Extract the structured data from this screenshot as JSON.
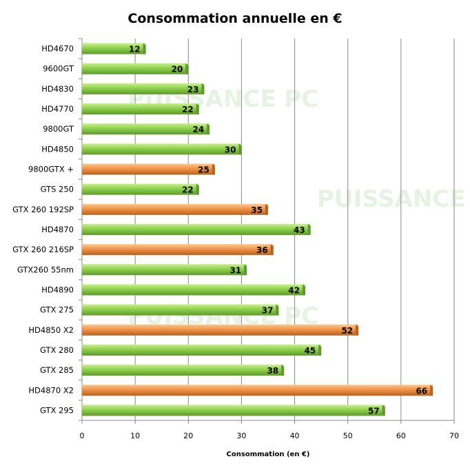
{
  "chart_data": {
    "type": "bar",
    "orientation": "horizontal",
    "title": "Consommation annuelle en €",
    "xlabel": "Consommation (en €)",
    "ylabel": "",
    "xlim": [
      0,
      70
    ],
    "xticks": [
      0,
      10,
      20,
      30,
      40,
      50,
      60,
      70
    ],
    "grid": "vertical",
    "legend": "none",
    "categories": [
      "HD4670",
      "9600GT",
      "HD4830",
      "HD4770",
      "9800GT",
      "HD4850",
      "9800GTX +",
      "GTS 250",
      "GTX 260 192SP",
      "HD4870",
      "GTX 260 216SP",
      "GTX260 55nm",
      "HD4890",
      "GTX 275",
      "HD4850 X2",
      "GTX 280",
      "GTX 285",
      "HD4870 X2",
      "GTX 295"
    ],
    "values": [
      12,
      20,
      23,
      22,
      24,
      30,
      25,
      22,
      35,
      43,
      36,
      31,
      42,
      37,
      52,
      45,
      38,
      66,
      57
    ],
    "bar_colors": [
      "green",
      "green",
      "green",
      "green",
      "green",
      "green",
      "orange",
      "green",
      "orange",
      "green",
      "orange",
      "green",
      "green",
      "green",
      "orange",
      "green",
      "green",
      "orange",
      "green"
    ],
    "colors": {
      "green": "#8fd14f",
      "green_dark": "#5e9a2a",
      "orange": "#f0944a",
      "orange_dark": "#b8621e",
      "grid": "#888888"
    }
  },
  "watermark": "PUISSANCE PC"
}
